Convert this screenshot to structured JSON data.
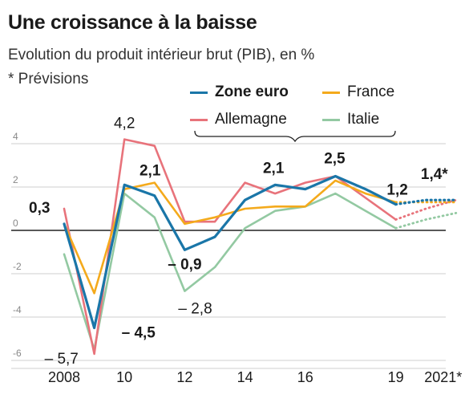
{
  "title": "Une croissance à la baisse",
  "subtitle": "Evolution du produit intérieur brut (PIB), en %",
  "note": "* Prévisions",
  "chart_data": {
    "type": "line",
    "title": "Une croissance à la baisse",
    "subtitle": "Evolution du produit intérieur brut (PIB), en %",
    "x": [
      2008,
      2009,
      2010,
      2011,
      2012,
      2013,
      2014,
      2015,
      2016,
      2017,
      2018,
      2019,
      2020,
      2021
    ],
    "forecast_from": 2019,
    "ylim": [
      -6.5,
      4.6
    ],
    "y_ticks": [
      -6,
      -4,
      -2,
      0,
      2,
      4
    ],
    "y_tick_labels": [
      "-6",
      "-4",
      "-2",
      "0",
      "2",
      "4"
    ],
    "x_tick_labels": [
      {
        "x": 2008,
        "label": "2008"
      },
      {
        "x": 2010,
        "label": "10"
      },
      {
        "x": 2012,
        "label": "12"
      },
      {
        "x": 2014,
        "label": "14"
      },
      {
        "x": 2016,
        "label": "16"
      },
      {
        "x": 2019,
        "label": "19"
      },
      {
        "x": 2021,
        "label": "2021*"
      }
    ],
    "series": [
      {
        "name": "Italie",
        "color": "#93c9a2",
        "values": [
          -1.1,
          -5.5,
          1.7,
          0.6,
          -2.8,
          -1.7,
          0.1,
          0.9,
          1.1,
          1.7,
          0.9,
          0.1,
          0.5,
          0.8
        ]
      },
      {
        "name": "Allemagne",
        "color": "#e8737b",
        "values": [
          1.0,
          -5.7,
          4.2,
          3.9,
          0.4,
          0.4,
          2.2,
          1.7,
          2.2,
          2.5,
          1.5,
          0.5,
          1.0,
          1.4
        ]
      },
      {
        "name": "France",
        "color": "#f4aa1c",
        "values": [
          0.3,
          -2.9,
          1.9,
          2.2,
          0.3,
          0.6,
          1.0,
          1.1,
          1.1,
          2.3,
          1.7,
          1.3,
          1.3,
          1.3
        ]
      },
      {
        "name": "Zone euro",
        "color": "#1a76a8",
        "values": [
          0.3,
          -4.5,
          2.1,
          1.6,
          -0.9,
          -0.3,
          1.4,
          2.1,
          1.9,
          2.5,
          1.9,
          1.2,
          1.4,
          1.4
        ]
      }
    ],
    "data_labels": [
      {
        "x": 2008,
        "y": 0.3,
        "text": "0,3",
        "bold": true
      },
      {
        "x": 2009,
        "y": -4.5,
        "text": "– 4,5",
        "bold": true
      },
      {
        "x": 2009,
        "y": -5.7,
        "text": "– 5,7",
        "bold": false
      },
      {
        "x": 2010,
        "y": 4.2,
        "text": "4,2",
        "bold": false
      },
      {
        "x": 2010,
        "y": 2.1,
        "text": "2,1",
        "bold": true
      },
      {
        "x": 2012,
        "y": -0.9,
        "text": "– 0,9",
        "bold": true
      },
      {
        "x": 2012,
        "y": -2.8,
        "text": "– 2,8",
        "bold": false
      },
      {
        "x": 2015,
        "y": 2.1,
        "text": "2,1",
        "bold": true
      },
      {
        "x": 2017,
        "y": 2.5,
        "text": "2,5",
        "bold": true
      },
      {
        "x": 2019,
        "y": 1.2,
        "text": "1,2",
        "bold": true
      },
      {
        "x": 2021,
        "y": 1.4,
        "text": "1,4*",
        "bold": true
      }
    ]
  }
}
